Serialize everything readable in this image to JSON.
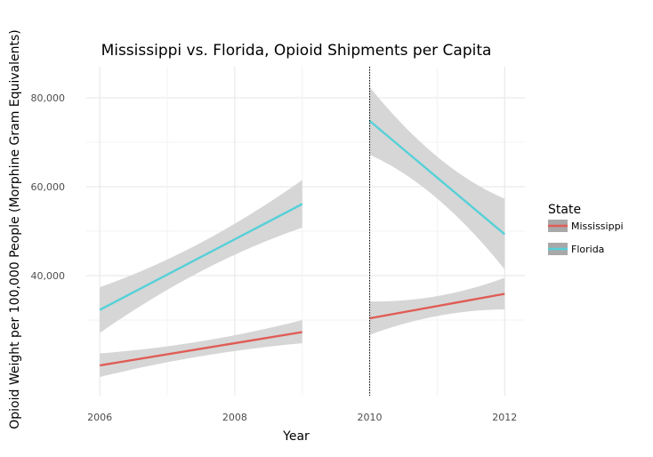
{
  "chart_data": {
    "type": "line",
    "title": "Mississippi vs. Florida, Opioid Shipments per Capita",
    "xlabel": "Year",
    "ylabel": "Opioid Weight per 100,000 People (Morphine Gram Equivalents)",
    "xlim": [
      2005.8,
      2012.3
    ],
    "ylim": [
      13000,
      87000
    ],
    "x_ticks": [
      2006,
      2008,
      2010,
      2012
    ],
    "x_tick_labels": [
      "2006",
      "2008",
      "2010",
      "2012"
    ],
    "y_ticks": [
      40000,
      60000,
      80000
    ],
    "y_tick_labels": [
      "40,000",
      "60,000",
      "80,000"
    ],
    "vline": 2010,
    "grid": true,
    "legend": {
      "title": "State",
      "position": "right",
      "entries": [
        "Mississippi",
        "Florida"
      ]
    },
    "series": [
      {
        "name": "Mississippi",
        "color": "#e05c55",
        "segments": [
          {
            "x": [
              2006,
              2009
            ],
            "y": [
              19800,
              27300
            ],
            "lower": [
              17200,
              24800
            ],
            "upper": [
              22500,
              30000
            ]
          },
          {
            "x": [
              2010,
              2012
            ],
            "y": [
              30400,
              35900
            ],
            "lower": [
              26700,
              32400
            ],
            "upper": [
              34200,
              39500
            ]
          }
        ]
      },
      {
        "name": "Florida",
        "color": "#56d0d8",
        "segments": [
          {
            "x": [
              2006,
              2009
            ],
            "y": [
              32300,
              56100
            ],
            "lower": [
              27100,
              50800
            ],
            "upper": [
              37400,
              61500
            ]
          },
          {
            "x": [
              2010,
              2012
            ],
            "y": [
              74800,
              49300
            ],
            "lower": [
              67200,
              41400
            ],
            "upper": [
              82400,
              57300
            ]
          }
        ]
      }
    ]
  }
}
